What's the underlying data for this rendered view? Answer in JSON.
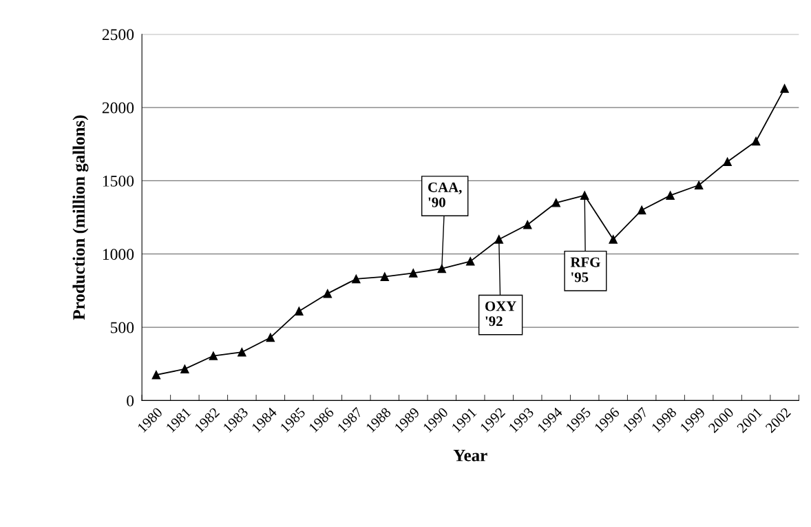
{
  "chart_data": {
    "type": "line",
    "xlabel": "Year",
    "ylabel": "Production (million gallons)",
    "categories": [
      "1980",
      "1981",
      "1982",
      "1983",
      "1984",
      "1985",
      "1986",
      "1987",
      "1988",
      "1989",
      "1990",
      "1991",
      "1992",
      "1993",
      "1994",
      "1995",
      "1996",
      "1997",
      "1998",
      "1999",
      "2000",
      "2001",
      "2002"
    ],
    "series": [
      {
        "color": "#000000",
        "values": [
          175,
          215,
          305,
          330,
          430,
          610,
          730,
          830,
          845,
          870,
          900,
          950,
          1100,
          1200,
          1350,
          1400,
          1100,
          1300,
          1400,
          1470,
          1630,
          1770,
          2130
        ]
      }
    ],
    "ylim": [
      0,
      2500
    ],
    "yticks": [
      0,
      500,
      1000,
      1500,
      2000,
      2500
    ],
    "grid": "y",
    "legend": false,
    "marker": "triangle",
    "line_style": "solid",
    "annotations": [
      {
        "text": "CAA,\n'90",
        "x": "1990",
        "y": 900
      },
      {
        "text": "OXY\n'92",
        "x": "1992",
        "y": 1100
      },
      {
        "text": "RFG\n'95",
        "x": "1995",
        "y": 1400
      }
    ]
  }
}
